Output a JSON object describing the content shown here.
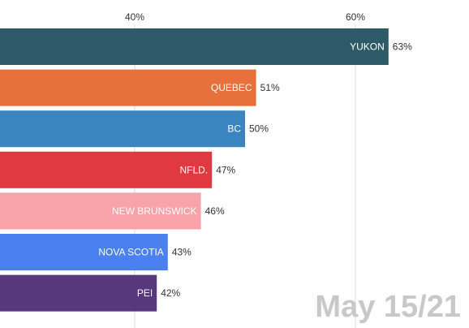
{
  "chart_data": {
    "type": "bar",
    "orientation": "horizontal",
    "title": "",
    "xlabel": "",
    "ylabel": "",
    "x_ticks": [
      40,
      60
    ],
    "x_tick_labels": [
      "40%",
      "60%"
    ],
    "grid": true,
    "categories": [
      "YUKON",
      "QUEBEC",
      "BC",
      "NFLD.",
      "NEW BRUNSWICK",
      "NOVA SCOTIA",
      "PEI"
    ],
    "values": [
      63,
      51,
      50,
      47,
      46,
      43,
      42
    ],
    "value_labels": [
      "63%",
      "51%",
      "50%",
      "47%",
      "46%",
      "43%",
      "42%"
    ],
    "colors": [
      "#2d5a66",
      "#e8703a",
      "#3a84c0",
      "#e03a40",
      "#f7a3a8",
      "#4a80f0",
      "#57387e"
    ],
    "date_stamp": "May 15/21"
  }
}
